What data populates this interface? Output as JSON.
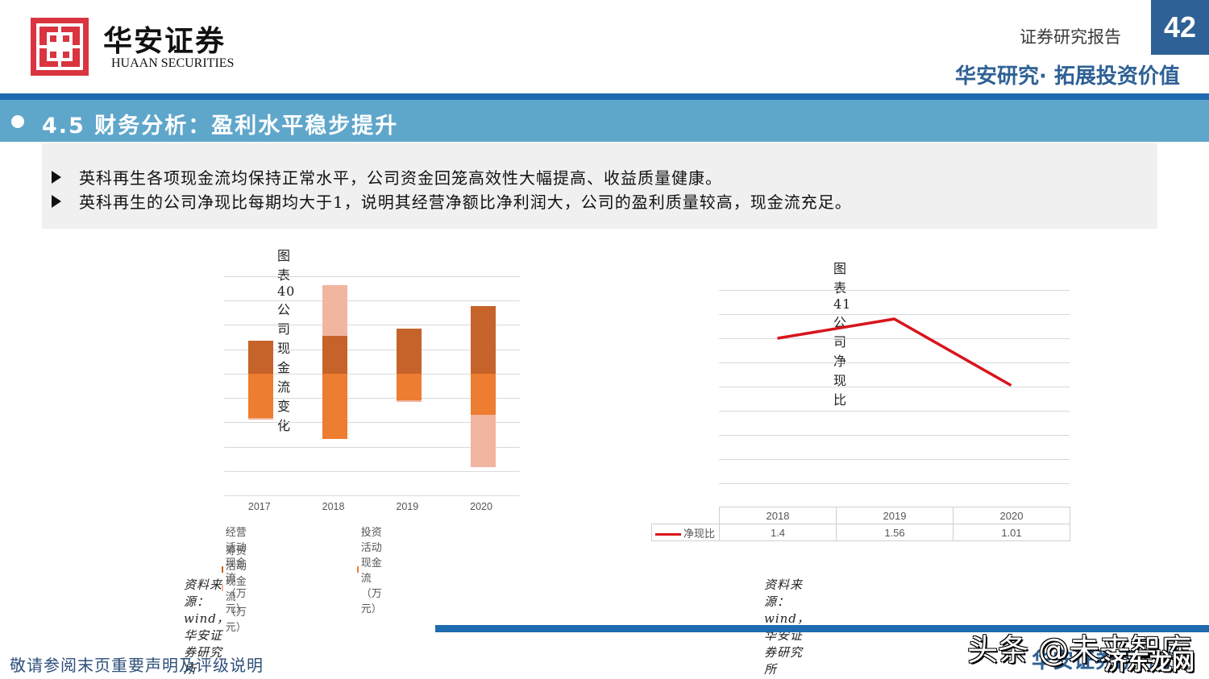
{
  "header": {
    "logo_cn": "华安证券",
    "logo_en": "HUAAN SECURITIES",
    "report_label": "证券研究报告",
    "page_number": "42",
    "slogan": "华安研究· 拓展投资价值"
  },
  "section": {
    "title": "4.5 财务分析：盈利水平稳步提升"
  },
  "summary": {
    "bullets": [
      "英科再生各项现金流均保持正常水平，公司资金回笼高效性大幅提高、收益质量健康。",
      "英科再生的公司净现比每期均大于1，说明其经营净额比净利润大，公司的盈利质量较高，现金流充足。"
    ]
  },
  "chart_data": [
    {
      "type": "bar",
      "stacked": true,
      "title": "图表40 公司现金流变化",
      "categories": [
        "2017",
        "2018",
        "2019",
        "2020"
      ],
      "series": [
        {
          "name": "经营活动现金流（万元）",
          "color": "#c5632a",
          "values": [
            10700,
            12300,
            14900,
            22100
          ]
        },
        {
          "name": "投资活动现金流（万元）",
          "color": "#ed7d31",
          "values": [
            -14700,
            -21600,
            -8800,
            -13600
          ]
        },
        {
          "name": "筹资活动现金流（万元）",
          "color": "#f2b5a0",
          "values": [
            -500,
            16800,
            -400,
            -17100
          ]
        }
      ],
      "yticks": [
        "32000",
        "24000",
        "16000",
        "8000",
        "0",
        "-8000",
        "-16000",
        "-24000",
        "-32000",
        "-40000"
      ],
      "ylim": [
        -40000,
        32000
      ],
      "xlabel": "",
      "ylabel": "",
      "grid": true,
      "legend_position": "bottom",
      "source": "资料来源：wind，华安证券研究所"
    },
    {
      "type": "line",
      "title": "图表41 公司净现比",
      "categories": [
        "2018",
        "2019",
        "2020"
      ],
      "series": [
        {
          "name": "净现比",
          "color": "#d9141c",
          "values": [
            1.4,
            1.56,
            1.01
          ]
        }
      ],
      "table_values": [
        "1.4",
        "1.56",
        "1.01"
      ],
      "yticks": [
        "1.8",
        "1.6",
        "1.4",
        "1.2",
        "1",
        "0.8",
        "0.6",
        "0.4",
        "0.2",
        "0"
      ],
      "ylim": [
        0,
        1.8
      ],
      "xlabel": "",
      "ylabel": "",
      "grid": true,
      "legend_position": "data-table",
      "source": "资料来源：wind，华安证券研究所"
    }
  ],
  "footer": {
    "disclaimer": "敬请参阅末页重要声明及评级说明",
    "brand": "华安证券研究所",
    "watermark_1": "头条 @未来智库",
    "watermark_2": "济东龙网"
  }
}
